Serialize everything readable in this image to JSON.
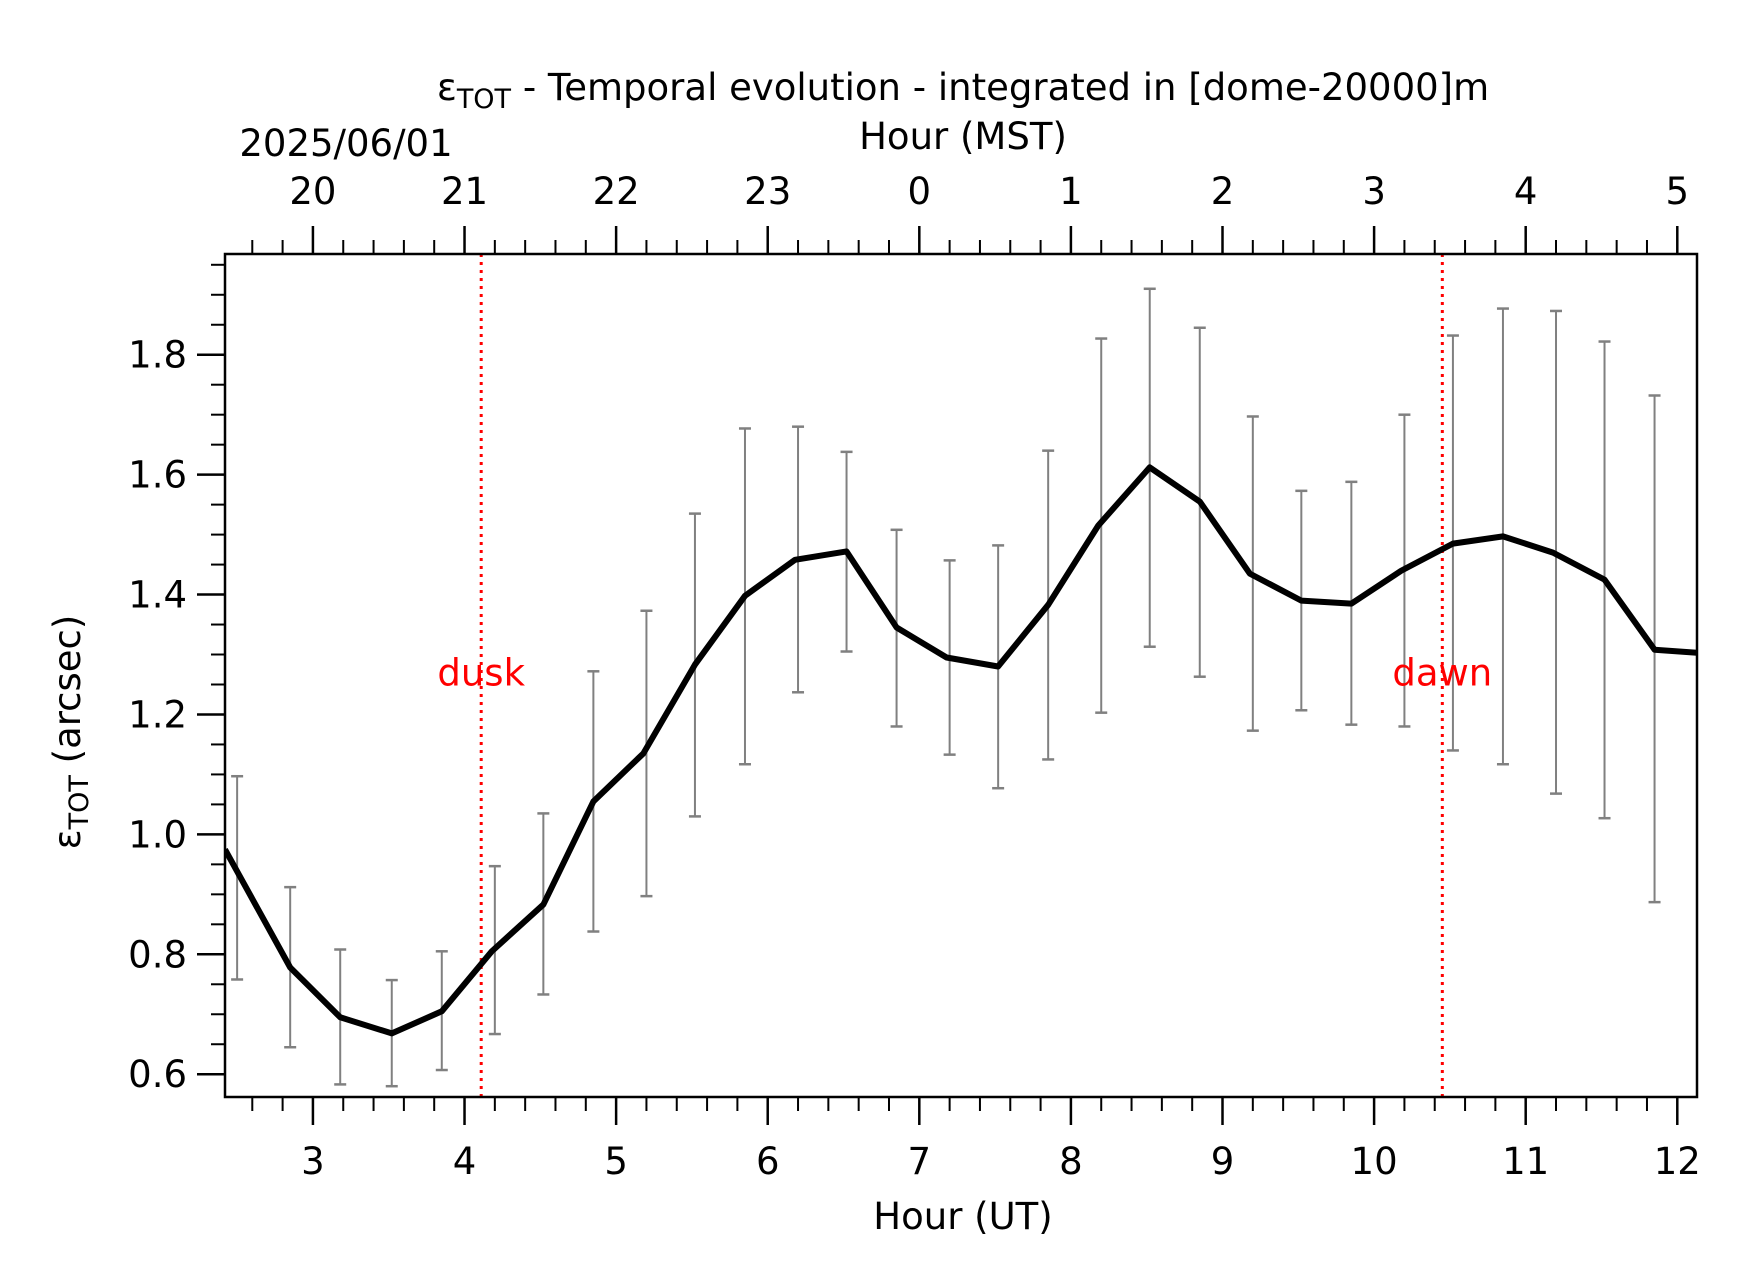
{
  "chart_data": {
    "type": "line",
    "title": {
      "main": "ε",
      "sub": "TOT",
      "rest": " - Temporal evolution - integrated in [dome-20000]m"
    },
    "date_label": "2025/06/01",
    "xlabel": "Hour (UT)",
    "xlabel_top": "Hour (MST)",
    "ylabel": {
      "main": "ε",
      "sub": "TOT",
      "rest": " (arcsec)"
    },
    "xlim": [
      2.42,
      12.13
    ],
    "ylim": [
      0.562,
      1.968
    ],
    "x_ticks": [
      3,
      4,
      5,
      6,
      7,
      8,
      9,
      10,
      11,
      12
    ],
    "x_tick_labels": [
      "3",
      "4",
      "5",
      "6",
      "7",
      "8",
      "9",
      "10",
      "11",
      "12"
    ],
    "top_ticks_ut": [
      3,
      4,
      5,
      6,
      7,
      8,
      9,
      10,
      11,
      12
    ],
    "top_tick_labels": [
      "20",
      "21",
      "22",
      "23",
      "0",
      "1",
      "2",
      "3",
      "4",
      "5"
    ],
    "y_ticks": [
      0.6,
      0.8,
      1.0,
      1.2,
      1.4,
      1.6,
      1.8
    ],
    "y_tick_labels": [
      "0.6",
      "0.8",
      "1.0",
      "1.2",
      "1.4",
      "1.6",
      "1.8"
    ],
    "series": [
      {
        "x": [
          2.42,
          2.85,
          3.18,
          3.52,
          3.85,
          4.18,
          4.52,
          4.85,
          5.18,
          5.52,
          5.85,
          6.18,
          6.52,
          6.85,
          7.18,
          7.52,
          7.85,
          8.18,
          8.52,
          8.85,
          9.18,
          9.52,
          9.85,
          10.18,
          10.52,
          10.85,
          11.18,
          11.52,
          11.85,
          12.13
        ],
        "y": [
          0.975,
          0.778,
          0.695,
          0.668,
          0.705,
          0.805,
          0.883,
          1.055,
          1.135,
          1.283,
          1.398,
          1.458,
          1.472,
          1.345,
          1.295,
          1.28,
          1.383,
          1.515,
          1.612,
          1.555,
          1.435,
          1.39,
          1.385,
          1.44,
          1.485,
          1.497,
          1.47,
          1.425,
          1.308,
          1.303
        ]
      }
    ],
    "error_bars": {
      "x": [
        2.5,
        2.85,
        3.18,
        3.52,
        3.85,
        4.2,
        4.52,
        4.85,
        5.2,
        5.52,
        5.85,
        6.2,
        6.52,
        6.85,
        7.2,
        7.52,
        7.85,
        8.2,
        8.52,
        8.85,
        9.2,
        9.52,
        9.85,
        10.2,
        10.52,
        10.85,
        11.2,
        11.52,
        11.85
      ],
      "low": [
        0.758,
        0.645,
        0.583,
        0.58,
        0.607,
        0.667,
        0.733,
        0.838,
        0.897,
        1.03,
        1.117,
        1.237,
        1.305,
        1.18,
        1.133,
        1.077,
        1.125,
        1.203,
        1.313,
        1.263,
        1.173,
        1.207,
        1.183,
        1.18,
        1.14,
        1.117,
        1.068,
        1.027,
        0.887
      ],
      "high": [
        1.097,
        0.912,
        0.808,
        0.757,
        0.805,
        0.947,
        1.035,
        1.272,
        1.373,
        1.535,
        1.677,
        1.68,
        1.638,
        1.508,
        1.457,
        1.482,
        1.64,
        1.827,
        1.91,
        1.845,
        1.697,
        1.573,
        1.588,
        1.7,
        1.832,
        1.877,
        1.873,
        1.822,
        1.732
      ]
    },
    "events": [
      {
        "x": 4.11,
        "label": "dusk"
      },
      {
        "x": 10.45,
        "label": "dawn"
      }
    ],
    "colors": {
      "line": "#000000",
      "error_bar": "#808080",
      "event": "#ff0000"
    },
    "grid": false,
    "legend": "none"
  }
}
